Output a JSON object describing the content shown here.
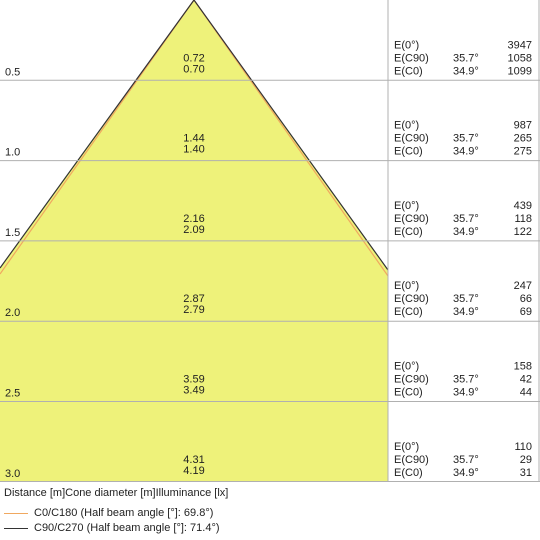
{
  "rows": [
    {
      "distance": "0.5",
      "d1": "0.72",
      "d2": "0.70",
      "e0": "3947",
      "ec90_angle": "35.7°",
      "ec90": "1058",
      "ec0_angle": "34.9°",
      "ec0": "1099"
    },
    {
      "distance": "1.0",
      "d1": "1.44",
      "d2": "1.40",
      "e0": "987",
      "ec90_angle": "35.7°",
      "ec90": "265",
      "ec0_angle": "34.9°",
      "ec0": "275"
    },
    {
      "distance": "1.5",
      "d1": "2.16",
      "d2": "2.09",
      "e0": "439",
      "ec90_angle": "35.7°",
      "ec90": "118",
      "ec0_angle": "34.9°",
      "ec0": "122"
    },
    {
      "distance": "2.0",
      "d1": "2.87",
      "d2": "2.79",
      "e0": "247",
      "ec90_angle": "35.7°",
      "ec90": "66",
      "ec0_angle": "34.9°",
      "ec0": "69"
    },
    {
      "distance": "2.5",
      "d1": "3.59",
      "d2": "3.49",
      "e0": "158",
      "ec90_angle": "35.7°",
      "ec90": "42",
      "ec0_angle": "34.9°",
      "ec0": "44"
    },
    {
      "distance": "3.0",
      "d1": "4.31",
      "d2": "4.19",
      "e0": "110",
      "ec90_angle": "35.7°",
      "ec90": "29",
      "ec0_angle": "34.9°",
      "ec0": "31"
    }
  ],
  "labels": {
    "e0": "E(0°)",
    "ec90": "E(C90)",
    "ec0": "E(C0)"
  },
  "axis_caption": "Distance [m]Cone diameter [m]Illuminance [lx]",
  "legend": [
    {
      "label": "C0/C180 (Half beam angle [°]: 69.8°)",
      "color": "#f0a860"
    },
    {
      "label": "C90/C270 (Half beam angle [°]: 71.4°)",
      "color": "#333333"
    }
  ],
  "colors": {
    "cone_fill": "#eef27a",
    "grid": "#b0b0b0"
  }
}
